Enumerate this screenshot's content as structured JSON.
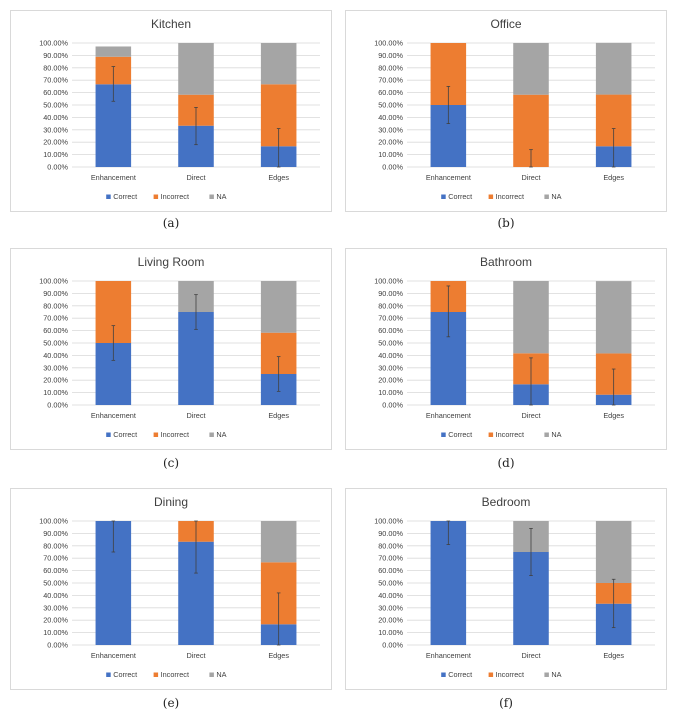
{
  "series_names": [
    "Correct",
    "Incorrect",
    "NA"
  ],
  "colors": {
    "Correct": "#4472c4",
    "Incorrect": "#ed7d31",
    "NA": "#a5a5a5"
  },
  "chart_data": [
    {
      "type": "bar",
      "stacked": true,
      "title": "Kitchen",
      "caption": "(a)",
      "categories": [
        "Enhancement",
        "Direct",
        "Edges"
      ],
      "series": [
        {
          "name": "Correct",
          "values": [
            0.667,
            0.333,
            0.167
          ]
        },
        {
          "name": "Incorrect",
          "values": [
            0.222,
            0.25,
            0.5
          ]
        },
        {
          "name": "NA",
          "values": [
            0.083,
            0.417,
            0.333
          ]
        }
      ],
      "error_bars": [
        {
          "center": 0.667,
          "low": 0.53,
          "high": 0.81
        },
        {
          "center": 0.333,
          "low": 0.18,
          "high": 0.48
        },
        {
          "center": 0.167,
          "low": 0.0,
          "high": 0.31
        }
      ],
      "ylim": [
        0,
        1
      ],
      "yticks": [
        "0.00%",
        "10.00%",
        "20.00%",
        "30.00%",
        "40.00%",
        "50.00%",
        "60.00%",
        "70.00%",
        "80.00%",
        "90.00%",
        "100.00%"
      ],
      "grid": true,
      "legend": "bottom"
    },
    {
      "type": "bar",
      "stacked": true,
      "title": "Office",
      "caption": "(b)",
      "categories": [
        "Enhancement",
        "Direct",
        "Edges"
      ],
      "series": [
        {
          "name": "Correct",
          "values": [
            0.5,
            0.0,
            0.167
          ]
        },
        {
          "name": "Incorrect",
          "values": [
            0.5,
            0.583,
            0.417
          ]
        },
        {
          "name": "NA",
          "values": [
            0.0,
            0.417,
            0.417
          ]
        }
      ],
      "error_bars": [
        {
          "center": 0.5,
          "low": 0.35,
          "high": 0.65
        },
        {
          "center": 0.0,
          "low": 0.0,
          "high": 0.14
        },
        {
          "center": 0.167,
          "low": 0.0,
          "high": 0.31
        }
      ],
      "ylim": [
        0,
        1
      ],
      "yticks": [
        "0.00%",
        "10.00%",
        "20.00%",
        "30.00%",
        "40.00%",
        "50.00%",
        "60.00%",
        "70.00%",
        "80.00%",
        "90.00%",
        "100.00%"
      ],
      "grid": true,
      "legend": "bottom"
    },
    {
      "type": "bar",
      "stacked": true,
      "title": "Living Room",
      "caption": "(c)",
      "categories": [
        "Enhancement",
        "Direct",
        "Edges"
      ],
      "series": [
        {
          "name": "Correct",
          "values": [
            0.5,
            0.75,
            0.25
          ]
        },
        {
          "name": "Incorrect",
          "values": [
            0.5,
            0.0,
            0.333
          ]
        },
        {
          "name": "NA",
          "values": [
            0.0,
            0.25,
            0.417
          ]
        }
      ],
      "error_bars": [
        {
          "center": 0.5,
          "low": 0.36,
          "high": 0.64
        },
        {
          "center": 0.75,
          "low": 0.61,
          "high": 0.89
        },
        {
          "center": 0.25,
          "low": 0.11,
          "high": 0.39
        }
      ],
      "ylim": [
        0,
        1
      ],
      "yticks": [
        "0.00%",
        "10.00%",
        "20.00%",
        "30.00%",
        "40.00%",
        "50.00%",
        "60.00%",
        "70.00%",
        "80.00%",
        "90.00%",
        "100.00%"
      ],
      "grid": true,
      "legend": "bottom"
    },
    {
      "type": "bar",
      "stacked": true,
      "title": "Bathroom",
      "caption": "(d)",
      "categories": [
        "Enhancement",
        "Direct",
        "Edges"
      ],
      "series": [
        {
          "name": "Correct",
          "values": [
            0.75,
            0.167,
            0.083
          ]
        },
        {
          "name": "Incorrect",
          "values": [
            0.25,
            0.25,
            0.333
          ]
        },
        {
          "name": "NA",
          "values": [
            0.0,
            0.583,
            0.583
          ]
        }
      ],
      "error_bars": [
        {
          "center": 0.75,
          "low": 0.55,
          "high": 0.96
        },
        {
          "center": 0.167,
          "low": 0.0,
          "high": 0.38
        },
        {
          "center": 0.083,
          "low": 0.0,
          "high": 0.29
        }
      ],
      "ylim": [
        0,
        1
      ],
      "yticks": [
        "0.00%",
        "10.00%",
        "20.00%",
        "30.00%",
        "40.00%",
        "50.00%",
        "60.00%",
        "70.00%",
        "80.00%",
        "90.00%",
        "100.00%"
      ],
      "grid": true,
      "legend": "bottom"
    },
    {
      "type": "bar",
      "stacked": true,
      "title": "Dining",
      "caption": "(e)",
      "categories": [
        "Enhancement",
        "Direct",
        "Edges"
      ],
      "series": [
        {
          "name": "Correct",
          "values": [
            1.0,
            0.833,
            0.167
          ]
        },
        {
          "name": "Incorrect",
          "values": [
            0.0,
            0.167,
            0.5
          ]
        },
        {
          "name": "NA",
          "values": [
            0.0,
            0.0,
            0.333
          ]
        }
      ],
      "error_bars": [
        {
          "center": 1.0,
          "low": 0.75,
          "high": 1.0
        },
        {
          "center": 0.833,
          "low": 0.58,
          "high": 1.0
        },
        {
          "center": 0.167,
          "low": 0.0,
          "high": 0.42
        }
      ],
      "ylim": [
        0,
        1
      ],
      "yticks": [
        "0.00%",
        "10.00%",
        "20.00%",
        "30.00%",
        "40.00%",
        "50.00%",
        "60.00%",
        "70.00%",
        "80.00%",
        "90.00%",
        "100.00%"
      ],
      "grid": true,
      "legend": "bottom"
    },
    {
      "type": "bar",
      "stacked": true,
      "title": "Bedroom",
      "caption": "(f)",
      "categories": [
        "Enhancement",
        "Direct",
        "Edges"
      ],
      "series": [
        {
          "name": "Correct",
          "values": [
            1.0,
            0.75,
            0.333
          ]
        },
        {
          "name": "Incorrect",
          "values": [
            0.0,
            0.0,
            0.167
          ]
        },
        {
          "name": "NA",
          "values": [
            0.0,
            0.25,
            0.5
          ]
        }
      ],
      "error_bars": [
        {
          "center": 1.0,
          "low": 0.81,
          "high": 1.0
        },
        {
          "center": 0.75,
          "low": 0.56,
          "high": 0.94
        },
        {
          "center": 0.333,
          "low": 0.14,
          "high": 0.53
        }
      ],
      "ylim": [
        0,
        1
      ],
      "yticks": [
        "0.00%",
        "10.00%",
        "20.00%",
        "30.00%",
        "40.00%",
        "50.00%",
        "60.00%",
        "70.00%",
        "80.00%",
        "90.00%",
        "100.00%"
      ],
      "grid": true,
      "legend": "bottom"
    }
  ]
}
